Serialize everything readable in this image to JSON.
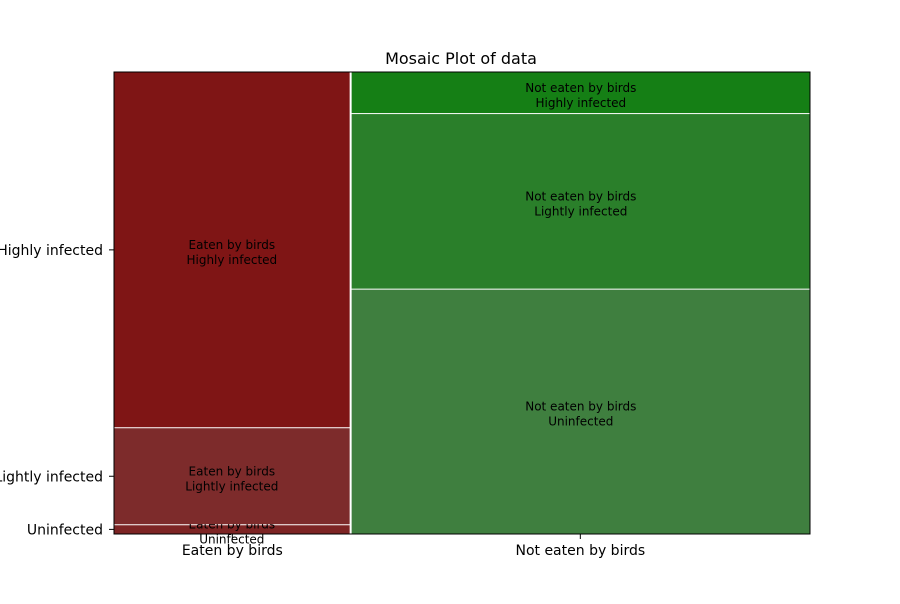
{
  "chart_data": {
    "type": "mosaic",
    "title": "Mosaic Plot of data",
    "xlabel": "",
    "ylabel": "",
    "x_categories": [
      "Eaten by birds",
      "Not eaten by birds"
    ],
    "y_categories": [
      "Uninfected",
      "Lightly infected",
      "Highly infected"
    ],
    "x_proportions": [
      0.34,
      0.66
    ],
    "conditional_proportions": [
      {
        "x": "Eaten by birds",
        "values": [
          0.02,
          0.21,
          0.77
        ]
      },
      {
        "x": "Not eaten by birds",
        "values": [
          0.53,
          0.38,
          0.09
        ]
      }
    ],
    "cells": [
      {
        "x": "Eaten by birds",
        "y": "Uninfected",
        "label_line1": "Eaten by birds",
        "label_line2": "Uninfected",
        "color": "#7d2424"
      },
      {
        "x": "Eaten by birds",
        "y": "Lightly infected",
        "label_line1": "Eaten by birds",
        "label_line2": "Lightly infected",
        "color": "#7d2b2b"
      },
      {
        "x": "Eaten by birds",
        "y": "Highly infected",
        "label_line1": "Eaten by birds",
        "label_line2": "Highly infected",
        "color": "#7f1515"
      },
      {
        "x": "Not eaten by birds",
        "y": "Uninfected",
        "label_line1": "Not eaten by birds",
        "label_line2": "Uninfected",
        "color": "#3f7f3f"
      },
      {
        "x": "Not eaten by birds",
        "y": "Lightly infected",
        "label_line1": "Not eaten by birds",
        "label_line2": "Lightly infected",
        "color": "#2a7f2a"
      },
      {
        "x": "Not eaten by birds",
        "y": "Highly infected",
        "label_line1": "Not eaten by birds",
        "label_line2": "Highly infected",
        "color": "#157f15"
      }
    ],
    "ytick_labels_from_first_column": true,
    "grid": false,
    "legend": "none"
  }
}
